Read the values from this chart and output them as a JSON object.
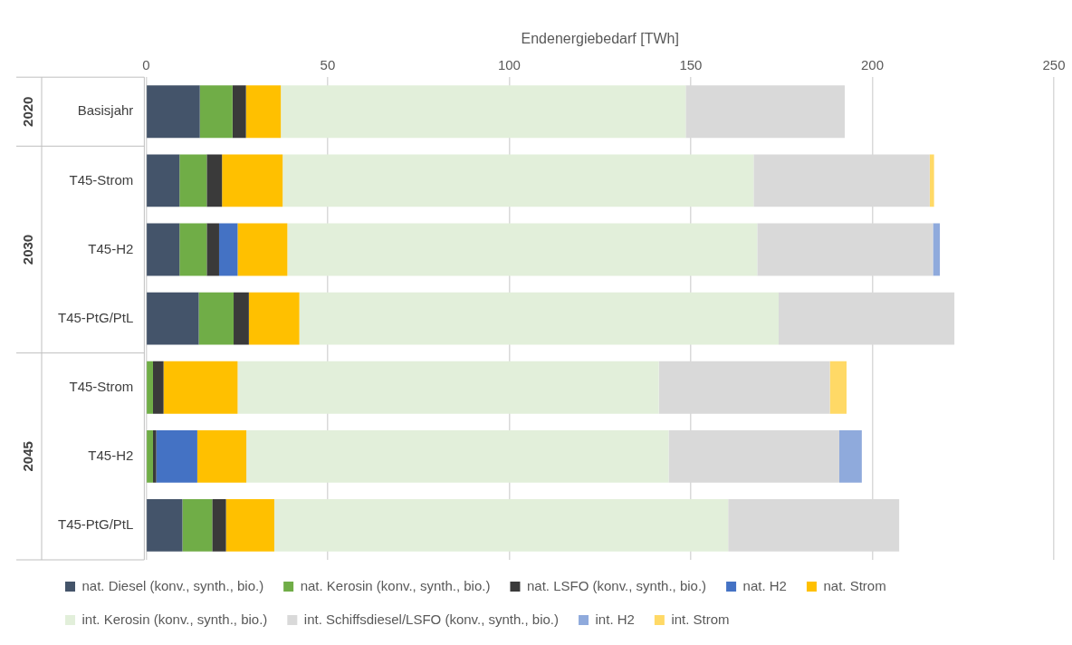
{
  "chart_data": {
    "type": "bar",
    "orientation": "horizontal",
    "stacked": true,
    "xlabel": "Endenergiebedarf [TWh]",
    "categories": [
      "Basisjahr",
      "T45-Strom",
      "T45-H2",
      "T45-PtG/PtL",
      "T45-Strom",
      "T45-H2",
      "T45-PtG/PtL"
    ],
    "annotations": [
      "2020",
      "2030",
      "2045"
    ],
    "xlim": [
      0,
      250
    ],
    "xticks": [
      0,
      50,
      100,
      150,
      200,
      250
    ],
    "grid": "x",
    "legend": "bottom",
    "series": [
      {
        "name": "nat. Diesel (konv., synth., bio.)",
        "color": "#44546a",
        "values": [
          14.8,
          9.2,
          9.2,
          14.5,
          0,
          0,
          10
        ]
      },
      {
        "name": "nat. Kerosin (konv., synth., bio.)",
        "color": "#70ad47",
        "values": [
          9,
          7.5,
          7.5,
          9.6,
          1.9,
          1.9,
          8.2
        ]
      },
      {
        "name": "nat. LSFO (konv., synth., bio.)",
        "color": "#3a3a3a",
        "values": [
          3.7,
          4.2,
          3.4,
          4.2,
          2.9,
          0.9,
          3.8
        ]
      },
      {
        "name": "nat. H2",
        "color": "#4472c4",
        "values": [
          0,
          0,
          5.1,
          0,
          0,
          11.3,
          0
        ]
      },
      {
        "name": "nat. Strom",
        "color": "#ffc000",
        "values": [
          9.6,
          16.7,
          13.7,
          13.9,
          20.4,
          13.5,
          13.3
        ]
      },
      {
        "name": "int. Kerosin (konv., synth., bio.)",
        "color": "#e2efda",
        "values": [
          111.5,
          129.7,
          129.4,
          132,
          116,
          116.3,
          125
        ]
      },
      {
        "name": "int. Schiffsdiesel/LSFO (konv., synth., bio.)",
        "color": "#d9d9d9",
        "values": [
          43.8,
          48.5,
          48.4,
          48.4,
          47.1,
          47,
          47.1
        ]
      },
      {
        "name": "int. H2",
        "color": "#8faadc",
        "values": [
          0,
          0,
          1.9,
          0,
          0,
          6.2,
          0
        ]
      },
      {
        "name": "int. Strom",
        "color": "#ffd966",
        "values": [
          0,
          1.2,
          0,
          0,
          4.6,
          0,
          0
        ]
      }
    ]
  }
}
